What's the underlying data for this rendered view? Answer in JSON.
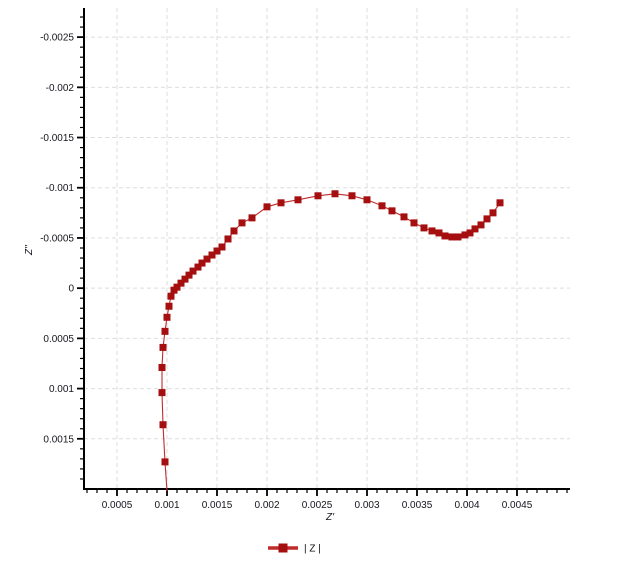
{
  "page": {
    "background": "#ffffff"
  },
  "chart_data": {
    "type": "line",
    "subtype": "nyquist-scatter-line",
    "title": "",
    "xlabel": "Z'",
    "ylabel": "Z''",
    "x_tick_labels": [
      "0.0005",
      "0.001",
      "0.0015",
      "0.002",
      "0.0025",
      "0.003",
      "0.0035",
      "0.004",
      "0.0045"
    ],
    "x_tick_values": [
      0.0005,
      0.001,
      0.0015,
      0.002,
      0.0025,
      0.003,
      0.0035,
      0.004,
      0.0045
    ],
    "y_tick_labels": [
      "-0.0025",
      "-0.002",
      "-0.0015",
      "-0.001",
      "-0.0005",
      "0",
      "0.0005",
      "0.001",
      "0.0015"
    ],
    "y_tick_values": [
      -0.0025,
      -0.002,
      -0.0015,
      -0.001,
      -0.0005,
      0,
      0.0005,
      0.001,
      0.0015
    ],
    "xlim": [
      0.00017,
      0.00503
    ],
    "ylim": [
      -0.00279,
      0.002
    ],
    "y_axis_inverted": true,
    "minor_tick_step": 0.0001,
    "grid": {
      "show": true,
      "color": "#dedede",
      "dash": "4 3"
    },
    "axis_color": "#000000",
    "tick_label_color": "#15151d",
    "legend": {
      "position": "bottom-center",
      "entries": [
        {
          "label": "| Z |"
        }
      ]
    },
    "series": [
      {
        "name": "| Z |",
        "line_color": "#c02b2b",
        "marker_color": "#a50f0f",
        "marker": "square",
        "marker_size": 7,
        "line_tail_end": [
          0.001,
          0.00202
        ],
        "points": [
          [
            0.00098,
            0.00173
          ],
          [
            0.00096,
            0.00136
          ],
          [
            0.00095,
            0.00104
          ],
          [
            0.00095,
            0.00079
          ],
          [
            0.00096,
            0.00059
          ],
          [
            0.00098,
            0.00043
          ],
          [
            0.001,
            0.00029
          ],
          [
            0.00102,
            0.00018
          ],
          [
            0.00104,
            8e-05
          ],
          [
            0.00107,
            2e-05
          ],
          [
            0.0011,
            -1e-05
          ],
          [
            0.00114,
            -5e-05
          ],
          [
            0.00118,
            -9e-05
          ],
          [
            0.00122,
            -0.00013
          ],
          [
            0.00126,
            -0.00017
          ],
          [
            0.00131,
            -0.00021
          ],
          [
            0.00135,
            -0.00025
          ],
          [
            0.0014,
            -0.00029
          ],
          [
            0.00145,
            -0.00033
          ],
          [
            0.0015,
            -0.00037
          ],
          [
            0.00155,
            -0.00041
          ],
          [
            0.00161,
            -0.00049
          ],
          [
            0.00167,
            -0.00057
          ],
          [
            0.00175,
            -0.00065
          ],
          [
            0.00185,
            -0.0007
          ],
          [
            0.002,
            -0.00081
          ],
          [
            0.00214,
            -0.00085
          ],
          [
            0.00231,
            -0.00088
          ],
          [
            0.00251,
            -0.00092
          ],
          [
            0.00268,
            -0.00094
          ],
          [
            0.00285,
            -0.00092
          ],
          [
            0.003,
            -0.00088
          ],
          [
            0.00315,
            -0.00082
          ],
          [
            0.00325,
            -0.00077
          ],
          [
            0.00337,
            -0.00071
          ],
          [
            0.00347,
            -0.00065
          ],
          [
            0.00357,
            -0.0006
          ],
          [
            0.00365,
            -0.00057
          ],
          [
            0.00372,
            -0.00055
          ],
          [
            0.00378,
            -0.00052
          ],
          [
            0.00385,
            -0.00051
          ],
          [
            0.00391,
            -0.00051
          ],
          [
            0.00398,
            -0.00053
          ],
          [
            0.00403,
            -0.00055
          ],
          [
            0.00408,
            -0.00059
          ],
          [
            0.00414,
            -0.00063
          ],
          [
            0.0042,
            -0.00069
          ],
          [
            0.00426,
            -0.00075
          ],
          [
            0.00433,
            -0.00085
          ]
        ]
      }
    ]
  }
}
